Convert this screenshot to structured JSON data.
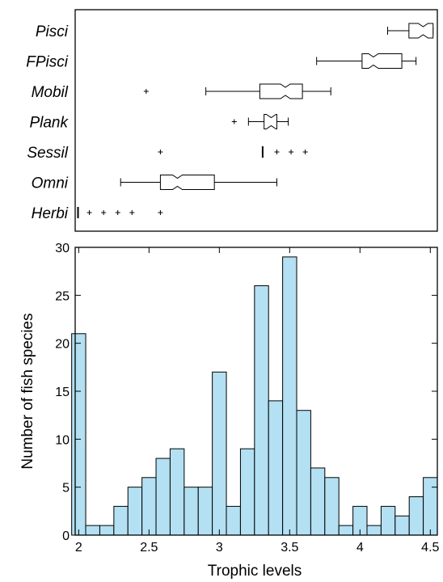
{
  "chart_data": [
    {
      "type": "boxplot",
      "orientation": "horizontal",
      "notched": true,
      "x_range": [
        2.0,
        4.55
      ],
      "categories": [
        "Pisci",
        "FPisci",
        "Mobil",
        "Plank",
        "Sessil",
        "Omni",
        "Herbi"
      ],
      "boxes": [
        {
          "name": "Pisci",
          "whisker_low": 4.2,
          "q1": 4.35,
          "median": 4.45,
          "q3": 4.52,
          "whisker_high": 4.52,
          "outliers": []
        },
        {
          "name": "FPisci",
          "whisker_low": 3.7,
          "q1": 4.02,
          "median": 4.1,
          "q3": 4.3,
          "whisker_high": 4.4,
          "outliers": []
        },
        {
          "name": "Mobil",
          "whisker_low": 2.92,
          "q1": 3.3,
          "median": 3.48,
          "q3": 3.6,
          "whisker_high": 3.8,
          "outliers": [
            2.5
          ]
        },
        {
          "name": "Plank",
          "whisker_low": 3.22,
          "q1": 3.33,
          "median": 3.38,
          "q3": 3.42,
          "whisker_high": 3.5,
          "outliers": [
            3.12
          ]
        },
        {
          "name": "Sessil",
          "whisker_low": 3.32,
          "q1": 3.32,
          "median": 3.32,
          "q3": 3.32,
          "whisker_high": 3.32,
          "outliers": [
            2.6,
            3.42,
            3.52,
            3.62
          ]
        },
        {
          "name": "Omni",
          "whisker_low": 2.32,
          "q1": 2.6,
          "median": 2.72,
          "q3": 2.98,
          "whisker_high": 3.42,
          "outliers": []
        },
        {
          "name": "Herbi",
          "whisker_low": 2.02,
          "q1": 2.02,
          "median": 2.02,
          "q3": 2.02,
          "whisker_high": 2.02,
          "outliers": [
            2.1,
            2.2,
            2.3,
            2.4,
            2.6
          ]
        }
      ]
    },
    {
      "type": "bar",
      "xlabel": "Trophic levels",
      "ylabel": "Number of fish species",
      "xlim": [
        1.975,
        4.55
      ],
      "ylim": [
        0,
        30
      ],
      "bin_width": 0.1,
      "x_ticks": [
        "2",
        "2.5",
        "3",
        "3.5",
        "4",
        "4.5"
      ],
      "x_tick_values": [
        2,
        2.5,
        3,
        3.5,
        4,
        4.5
      ],
      "y_ticks": [
        "0",
        "5",
        "10",
        "15",
        "20",
        "25",
        "30"
      ],
      "y_tick_values": [
        0,
        5,
        10,
        15,
        20,
        25,
        30
      ],
      "bar_color": "#b3e0f2",
      "bins": [
        {
          "x": 2.0,
          "count": 21
        },
        {
          "x": 2.1,
          "count": 1
        },
        {
          "x": 2.2,
          "count": 1
        },
        {
          "x": 2.3,
          "count": 3
        },
        {
          "x": 2.4,
          "count": 5
        },
        {
          "x": 2.5,
          "count": 6
        },
        {
          "x": 2.6,
          "count": 8
        },
        {
          "x": 2.7,
          "count": 9
        },
        {
          "x": 2.8,
          "count": 5
        },
        {
          "x": 2.9,
          "count": 5
        },
        {
          "x": 3.0,
          "count": 17
        },
        {
          "x": 3.1,
          "count": 3
        },
        {
          "x": 3.2,
          "count": 9
        },
        {
          "x": 3.3,
          "count": 26
        },
        {
          "x": 3.4,
          "count": 14
        },
        {
          "x": 3.5,
          "count": 29
        },
        {
          "x": 3.6,
          "count": 13
        },
        {
          "x": 3.7,
          "count": 7
        },
        {
          "x": 3.8,
          "count": 6
        },
        {
          "x": 3.9,
          "count": 1
        },
        {
          "x": 4.0,
          "count": 3
        },
        {
          "x": 4.1,
          "count": 1
        },
        {
          "x": 4.2,
          "count": 3
        },
        {
          "x": 4.3,
          "count": 2
        },
        {
          "x": 4.4,
          "count": 4
        },
        {
          "x": 4.5,
          "count": 6
        }
      ]
    }
  ]
}
